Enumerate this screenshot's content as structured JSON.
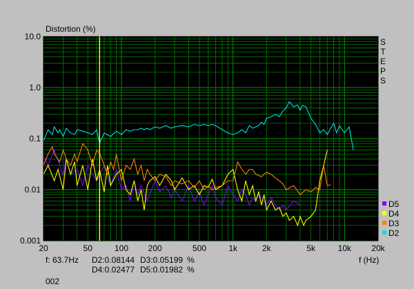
{
  "window": {
    "id_label": "002"
  },
  "chart_data": {
    "type": "line",
    "title": "Distortion (%)",
    "xlabel": "f (Hz)",
    "ylabel": "Distortion (%)",
    "xscale": "log",
    "yscale": "log",
    "xlim": [
      20,
      20000
    ],
    "ylim": [
      0.001,
      10
    ],
    "grid": true,
    "background": "#000000",
    "grid_color": "#008000",
    "x_ticks": [
      {
        "v": 20,
        "label": "20"
      },
      {
        "v": 50,
        "label": "50"
      },
      {
        "v": 100,
        "label": "100"
      },
      {
        "v": 200,
        "label": "200"
      },
      {
        "v": 500,
        "label": "500"
      },
      {
        "v": 1000,
        "label": "1k"
      },
      {
        "v": 2000,
        "label": "2k"
      },
      {
        "v": 5000,
        "label": "5k"
      },
      {
        "v": 10000,
        "label": "10k"
      },
      {
        "v": 20000,
        "label": "20k"
      }
    ],
    "y_ticks": [
      {
        "v": 10,
        "label": "10.0"
      },
      {
        "v": 1,
        "label": "1.0"
      },
      {
        "v": 0.1,
        "label": "0.1"
      },
      {
        "v": 0.01,
        "label": "0.01"
      },
      {
        "v": 0.001,
        "label": "0.001"
      }
    ],
    "side_label": [
      "S",
      "T",
      "E",
      "P",
      "S"
    ],
    "legend_position": "bottom-right",
    "cursor": {
      "x": 63.7,
      "color": "#ffff00"
    },
    "readout": {
      "freq": "f: 63.7Hz",
      "d2": "D2:0.08144",
      "d3": "D3:0.05199",
      "unit": "%",
      "d4": "D4:0.02477",
      "d5": "D5:0.01982"
    },
    "series": [
      {
        "name": "D5",
        "color": "#8000ff",
        "x": [
          20,
          22,
          25,
          28,
          30,
          32,
          35,
          40,
          45,
          50,
          55,
          60,
          63.7,
          70,
          80,
          90,
          100,
          110,
          120,
          130,
          140,
          150,
          170,
          200,
          220,
          250,
          280,
          300,
          350,
          400,
          450,
          500,
          550,
          600,
          650,
          700,
          800,
          900,
          1000,
          1100,
          1200,
          1300,
          1400,
          1500,
          1600,
          1700,
          1800,
          1900,
          2000,
          2200,
          2400,
          2600,
          2800,
          3000,
          3500,
          4000
        ],
        "y": [
          0.045,
          0.03,
          0.06,
          0.03,
          0.018,
          0.04,
          0.02,
          0.025,
          0.012,
          0.03,
          0.02,
          0.015,
          0.0198,
          0.03,
          0.012,
          0.025,
          0.01,
          0.012,
          0.006,
          0.015,
          0.008,
          0.012,
          0.006,
          0.015,
          0.009,
          0.012,
          0.007,
          0.01,
          0.006,
          0.012,
          0.006,
          0.009,
          0.005,
          0.008,
          0.012,
          0.007,
          0.005,
          0.012,
          0.008,
          0.006,
          0.01,
          0.008,
          0.005,
          0.007,
          0.006,
          0.008,
          0.007,
          0.006,
          0.005,
          0.007,
          0.005,
          0.004,
          0.005,
          0.004,
          0.006,
          0.005
        ]
      },
      {
        "name": "D4",
        "color": "#ffff00",
        "x": [
          20,
          22,
          25,
          27,
          30,
          32,
          35,
          38,
          40,
          45,
          50,
          55,
          60,
          63.7,
          70,
          75,
          80,
          90,
          100,
          110,
          120,
          130,
          140,
          150,
          160,
          170,
          180,
          200,
          220,
          250,
          280,
          300,
          350,
          400,
          450,
          500,
          550,
          600,
          650,
          700,
          800,
          900,
          1000,
          1100,
          1200,
          1300,
          1400,
          1500,
          1600,
          1700,
          1800,
          1900,
          2000,
          2200,
          2400,
          2600,
          2800,
          3000,
          3200,
          3500,
          3800,
          4000,
          4300,
          4500,
          5000,
          5500,
          6000,
          6500,
          7000
        ],
        "y": [
          0.02,
          0.03,
          0.015,
          0.025,
          0.01,
          0.04,
          0.02,
          0.035,
          0.012,
          0.03,
          0.01,
          0.04,
          0.015,
          0.0248,
          0.009,
          0.03,
          0.012,
          0.02,
          0.025,
          0.01,
          0.008,
          0.015,
          0.006,
          0.01,
          0.004,
          0.012,
          0.015,
          0.018,
          0.012,
          0.02,
          0.015,
          0.01,
          0.017,
          0.01,
          0.012,
          0.008,
          0.012,
          0.011,
          0.016,
          0.01,
          0.012,
          0.02,
          0.025,
          0.01,
          0.006,
          0.015,
          0.008,
          0.012,
          0.006,
          0.009,
          0.005,
          0.008,
          0.004,
          0.006,
          0.004,
          0.0045,
          0.003,
          0.0035,
          0.0025,
          0.003,
          0.002,
          0.003,
          0.002,
          0.0025,
          0.003,
          0.004,
          0.015,
          0.03,
          0.06
        ]
      },
      {
        "name": "D3",
        "color": "#ff8000",
        "x": [
          20,
          22,
          24,
          25,
          28,
          30,
          32,
          35,
          38,
          40,
          45,
          50,
          55,
          60,
          63.7,
          70,
          75,
          80,
          85,
          90,
          100,
          110,
          120,
          130,
          140,
          150,
          160,
          170,
          180,
          200,
          220,
          250,
          280,
          300,
          350,
          400,
          450,
          500,
          550,
          600,
          650,
          700,
          800,
          900,
          1000,
          1100,
          1200,
          1300,
          1400,
          1500,
          1600,
          1800,
          2000,
          2200,
          2400,
          2600,
          2800,
          3000,
          3500,
          4000,
          4500,
          5000,
          5500,
          6000,
          6500,
          7000,
          7500
        ],
        "y": [
          0.03,
          0.05,
          0.07,
          0.05,
          0.035,
          0.06,
          0.04,
          0.03,
          0.05,
          0.035,
          0.08,
          0.06,
          0.03,
          0.06,
          0.052,
          0.03,
          0.02,
          0.035,
          0.025,
          0.05,
          0.015,
          0.03,
          0.025,
          0.04,
          0.02,
          0.03,
          0.015,
          0.025,
          0.02,
          0.015,
          0.02,
          0.018,
          0.012,
          0.015,
          0.013,
          0.015,
          0.011,
          0.015,
          0.01,
          0.012,
          0.01,
          0.011,
          0.012,
          0.015,
          0.015,
          0.035,
          0.025,
          0.02,
          0.025,
          0.025,
          0.02,
          0.018,
          0.022,
          0.02,
          0.017,
          0.015,
          0.013,
          0.01,
          0.012,
          0.008,
          0.01,
          0.009,
          0.011,
          0.01,
          0.03,
          0.012,
          0.0125
        ]
      },
      {
        "name": "D2",
        "color": "#00e0e0",
        "x": [
          20,
          22,
          24,
          25,
          27,
          28,
          30,
          32,
          35,
          38,
          40,
          45,
          50,
          55,
          60,
          63.7,
          70,
          80,
          90,
          100,
          110,
          120,
          130,
          140,
          150,
          160,
          170,
          180,
          200,
          220,
          250,
          280,
          300,
          350,
          400,
          450,
          500,
          550,
          600,
          650,
          700,
          800,
          900,
          1000,
          1100,
          1200,
          1300,
          1400,
          1500,
          1600,
          1700,
          1800,
          1900,
          2000,
          2200,
          2400,
          2600,
          2800,
          3000,
          3200,
          3500,
          3800,
          4000,
          4200,
          4500,
          5000,
          5500,
          6000,
          6500,
          7000,
          7500,
          8000,
          8500,
          9000,
          10000,
          11000,
          12000
        ],
        "y": [
          0.09,
          0.15,
          0.12,
          0.17,
          0.13,
          0.15,
          0.11,
          0.16,
          0.13,
          0.12,
          0.15,
          0.14,
          0.13,
          0.12,
          0.15,
          0.081,
          0.13,
          0.11,
          0.14,
          0.12,
          0.15,
          0.14,
          0.15,
          0.15,
          0.16,
          0.15,
          0.16,
          0.15,
          0.17,
          0.16,
          0.18,
          0.16,
          0.17,
          0.18,
          0.17,
          0.19,
          0.18,
          0.19,
          0.18,
          0.19,
          0.18,
          0.15,
          0.13,
          0.12,
          0.13,
          0.15,
          0.13,
          0.18,
          0.16,
          0.17,
          0.18,
          0.21,
          0.19,
          0.25,
          0.27,
          0.3,
          0.27,
          0.35,
          0.4,
          0.53,
          0.42,
          0.46,
          0.36,
          0.45,
          0.42,
          0.25,
          0.19,
          0.13,
          0.15,
          0.12,
          0.16,
          0.2,
          0.13,
          0.18,
          0.13,
          0.17,
          0.06
        ]
      }
    ]
  }
}
